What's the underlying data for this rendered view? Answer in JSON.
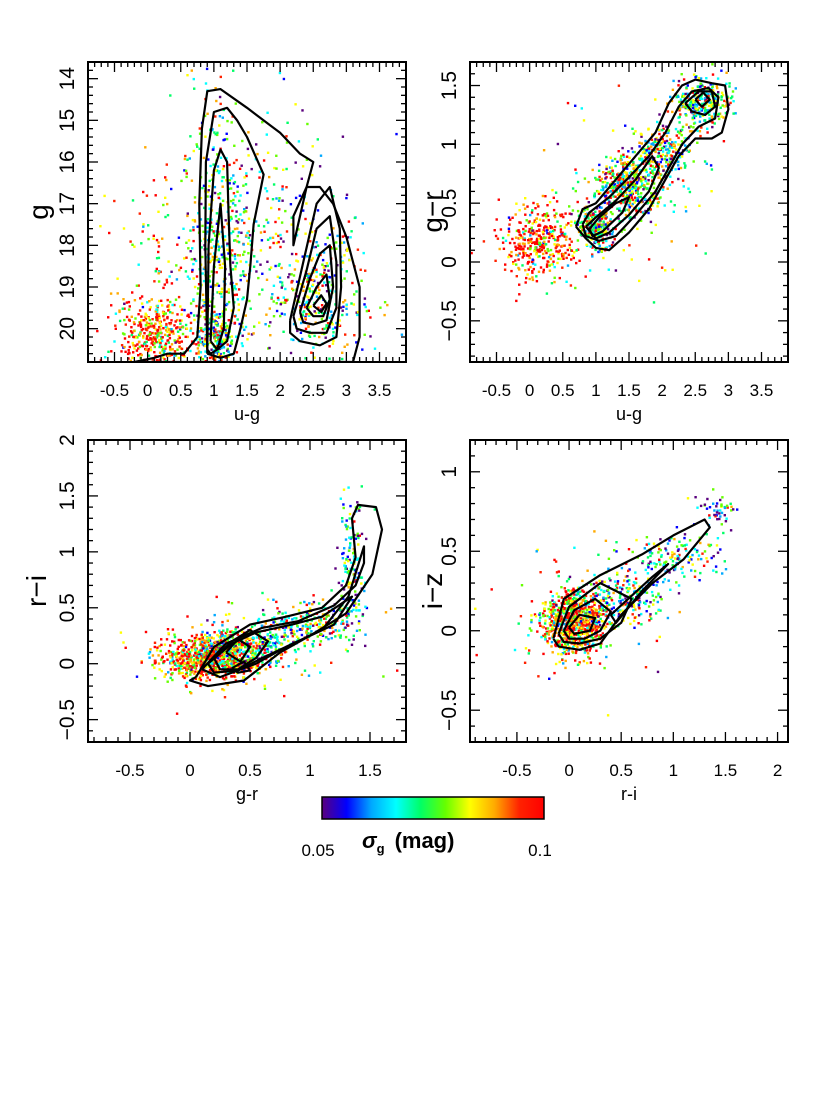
{
  "chart_data": [
    {
      "type": "scatter",
      "panel": "top-left",
      "xlabel": "u-g",
      "ylabel": "g",
      "xlim": [
        -0.9,
        3.9
      ],
      "ylim": [
        20.8,
        13.6
      ],
      "y_inverted": true,
      "xticks": [
        -0.5,
        0,
        0.5,
        1,
        1.5,
        2,
        2.5,
        3,
        3.5
      ],
      "xtick_labels": [
        "-0.5",
        "0",
        "0.5",
        "1",
        "1.5",
        "2",
        "2.5",
        "3",
        "3.5"
      ],
      "yticks": [
        14,
        15,
        16,
        17,
        18,
        19,
        20
      ],
      "ytick_labels": [
        "14",
        "15",
        "16",
        "17",
        "18",
        "19",
        "20"
      ],
      "clusters": [
        {
          "x": 0.1,
          "y": 20.1,
          "sx": 0.28,
          "sy": 0.45,
          "n": 380,
          "color_bias": 0.85
        },
        {
          "x": 0.2,
          "y": 18.7,
          "sx": 0.4,
          "sy": 1.2,
          "n": 90,
          "color_bias": 0.7
        },
        {
          "x": 1.05,
          "y": 18.2,
          "sx": 0.22,
          "sy": 1.8,
          "n": 420,
          "color_bias": 0.5
        },
        {
          "x": 1.0,
          "y": 20.2,
          "sx": 0.15,
          "sy": 0.35,
          "n": 160,
          "color_bias": 0.5
        },
        {
          "x": 1.7,
          "y": 17.8,
          "sx": 0.5,
          "sy": 1.6,
          "n": 220,
          "color_bias": 0.45
        },
        {
          "x": 2.6,
          "y": 19.2,
          "sx": 0.35,
          "sy": 0.9,
          "n": 320,
          "color_bias": 0.5
        },
        {
          "x": 1.6,
          "y": 18.5,
          "sx": 1.2,
          "sy": 1.8,
          "n": 110,
          "color_bias": 0.5
        }
      ],
      "contours": [
        {
          "x": [
            -0.2,
            0.1,
            0.3,
            0.55,
            0.75,
            0.8,
            0.78,
            0.82,
            0.9,
            1.1,
            1.5,
            2.0,
            2.3,
            2.5,
            2.4,
            2.2,
            2.2,
            2.4,
            2.6,
            2.8,
            3.0,
            3.2,
            3.2,
            3.1,
            2.8,
            2.0,
            1.3,
            0.6,
            0.1,
            -0.2,
            -0.2
          ],
          "y": [
            20.8,
            20.7,
            20.6,
            20.6,
            20.2,
            19.0,
            17.0,
            15.2,
            14.3,
            14.25,
            14.7,
            15.3,
            15.8,
            16.0,
            16.6,
            17.3,
            18.0,
            16.6,
            16.6,
            17.0,
            17.8,
            19.0,
            20.2,
            20.8,
            20.8,
            20.8,
            20.8,
            20.8,
            20.8,
            20.8,
            20.8
          ]
        },
        {
          "x": [
            0.9,
            0.87,
            0.88,
            1.0,
            1.2,
            1.35,
            1.5,
            1.75,
            1.6,
            1.55,
            1.5,
            1.4,
            1.3,
            1.1,
            0.9
          ],
          "y": [
            20.6,
            18.0,
            16.0,
            14.8,
            14.7,
            15.0,
            15.4,
            16.3,
            17.5,
            18.5,
            19.3,
            20.0,
            20.6,
            20.7,
            20.6
          ]
        },
        {
          "x": [
            0.9,
            0.92,
            1.0,
            1.1,
            1.2,
            1.22,
            1.25,
            1.3,
            1.2,
            1.05,
            0.95,
            0.9
          ],
          "y": [
            20.5,
            18.0,
            16.2,
            15.7,
            16.0,
            17.2,
            18.5,
            19.5,
            20.3,
            20.5,
            20.6,
            20.5
          ]
        },
        {
          "x": [
            0.95,
            1.0,
            1.1,
            1.17,
            1.15,
            1.05,
            0.95
          ],
          "y": [
            20.3,
            18.5,
            17.0,
            18.5,
            20.0,
            20.5,
            20.3
          ]
        },
        {
          "x": [
            2.15,
            2.35,
            2.55,
            2.75,
            2.9,
            2.92,
            2.85,
            2.6,
            2.3,
            2.15,
            2.15
          ],
          "y": [
            19.8,
            18.4,
            17.0,
            16.6,
            17.6,
            19.0,
            20.2,
            20.4,
            20.3,
            20.1,
            19.8
          ]
        },
        {
          "x": [
            2.2,
            2.4,
            2.55,
            2.75,
            2.85,
            2.85,
            2.7,
            2.45,
            2.25,
            2.2
          ],
          "y": [
            19.7,
            18.6,
            17.6,
            17.3,
            18.4,
            19.5,
            20.1,
            20.1,
            20.0,
            19.7
          ]
        },
        {
          "x": [
            2.3,
            2.45,
            2.6,
            2.75,
            2.8,
            2.7,
            2.5,
            2.35,
            2.3
          ],
          "y": [
            19.6,
            18.8,
            18.2,
            18.0,
            19.0,
            19.8,
            19.9,
            19.85,
            19.6
          ]
        },
        {
          "x": [
            2.4,
            2.55,
            2.7,
            2.75,
            2.65,
            2.5,
            2.4
          ],
          "y": [
            19.5,
            19.0,
            18.7,
            19.3,
            19.7,
            19.7,
            19.5
          ]
        },
        {
          "x": [
            2.5,
            2.62,
            2.7,
            2.62,
            2.5
          ],
          "y": [
            19.45,
            19.2,
            19.4,
            19.6,
            19.45
          ]
        }
      ]
    },
    {
      "type": "scatter",
      "panel": "top-right",
      "xlabel": "u-g",
      "ylabel": "g−r",
      "xlim": [
        -0.9,
        3.9
      ],
      "ylim": [
        -0.85,
        1.7
      ],
      "xticks": [
        -0.5,
        0,
        0.5,
        1,
        1.5,
        2,
        2.5,
        3,
        3.5
      ],
      "xtick_labels": [
        "-0.5",
        "0",
        "0.5",
        "1",
        "1.5",
        "2",
        "2.5",
        "3",
        "3.5"
      ],
      "yticks": [
        -0.5,
        0,
        0.5,
        1,
        1.5
      ],
      "ytick_labels": [
        "−0.5",
        "0",
        "0.5",
        "1",
        "1.5"
      ],
      "clusters": [
        {
          "x": 0.15,
          "y": 0.15,
          "sx": 0.3,
          "sy": 0.16,
          "n": 380,
          "color_bias": 0.85
        },
        {
          "x": 1.0,
          "y": 0.3,
          "sx": 0.15,
          "sy": 0.08,
          "n": 260,
          "color_bias": 0.5
        },
        {
          "x": 1.5,
          "y": 0.65,
          "sx": 0.25,
          "sy": 0.12,
          "n": 420,
          "color_bias": 0.5
        },
        {
          "x": 2.0,
          "y": 0.95,
          "sx": 0.22,
          "sy": 0.13,
          "n": 260,
          "color_bias": 0.5
        },
        {
          "x": 2.6,
          "y": 1.35,
          "sx": 0.22,
          "sy": 0.1,
          "n": 300,
          "color_bias": 0.5
        },
        {
          "x": 1.4,
          "y": 0.6,
          "sx": 0.9,
          "sy": 0.4,
          "n": 90,
          "color_bias": 0.55
        }
      ],
      "contours": [
        {
          "x": [
            0.7,
            0.8,
            1.0,
            1.3,
            1.6,
            1.9,
            2.1,
            2.3,
            2.5,
            2.75,
            2.95,
            3.0,
            2.9,
            2.75,
            2.5,
            2.25,
            2.05,
            1.8,
            1.5,
            1.2,
            1.0,
            0.85,
            0.7
          ],
          "y": [
            0.3,
            0.45,
            0.5,
            0.7,
            0.9,
            1.1,
            1.35,
            1.5,
            1.55,
            1.52,
            1.5,
            1.3,
            1.1,
            1.05,
            1.05,
            0.9,
            0.7,
            0.45,
            0.25,
            0.1,
            0.12,
            0.2,
            0.3
          ]
        },
        {
          "x": [
            0.8,
            0.9,
            1.2,
            1.5,
            1.8,
            2.05,
            2.25,
            2.45,
            2.7,
            2.85,
            2.8,
            2.55,
            2.3,
            2.1,
            1.9,
            1.6,
            1.3,
            1.05,
            0.85,
            0.8
          ],
          "y": [
            0.32,
            0.42,
            0.55,
            0.72,
            0.9,
            1.1,
            1.32,
            1.45,
            1.48,
            1.4,
            1.22,
            1.15,
            1.0,
            0.8,
            0.6,
            0.4,
            0.22,
            0.18,
            0.22,
            0.32
          ]
        },
        {
          "x": [
            0.85,
            1.0,
            1.3,
            1.6,
            1.85,
            1.95,
            1.8,
            1.5,
            1.2,
            1.0,
            0.85
          ],
          "y": [
            0.3,
            0.38,
            0.52,
            0.7,
            0.9,
            0.8,
            0.6,
            0.4,
            0.25,
            0.2,
            0.3
          ]
        },
        {
          "x": [
            0.9,
            1.05,
            1.3,
            1.5,
            1.4,
            1.1,
            0.95,
            0.9
          ],
          "y": [
            0.28,
            0.38,
            0.5,
            0.55,
            0.42,
            0.26,
            0.22,
            0.28
          ]
        },
        {
          "x": [
            2.35,
            2.55,
            2.75,
            2.8,
            2.65,
            2.45,
            2.35
          ],
          "y": [
            1.35,
            1.45,
            1.45,
            1.32,
            1.25,
            1.28,
            1.35
          ]
        },
        {
          "x": [
            2.5,
            2.62,
            2.72,
            2.6,
            2.5
          ],
          "y": [
            1.38,
            1.44,
            1.38,
            1.32,
            1.38
          ]
        }
      ]
    },
    {
      "type": "scatter",
      "panel": "bottom-left",
      "xlabel": "g-r",
      "ylabel": "r−i",
      "xlim": [
        -0.85,
        1.8
      ],
      "ylim": [
        -0.7,
        2.0
      ],
      "xticks": [
        -0.5,
        0,
        0.5,
        1,
        1.5
      ],
      "xtick_labels": [
        "-0.5",
        "0",
        "0.5",
        "1",
        "1.5"
      ],
      "yticks": [
        -0.5,
        0,
        0.5,
        1,
        1.5,
        2
      ],
      "ytick_labels": [
        "−0.5",
        "0",
        "0.5",
        "1",
        "1.5",
        "2"
      ],
      "clusters": [
        {
          "x": 0.15,
          "y": 0.05,
          "sx": 0.2,
          "sy": 0.1,
          "n": 750,
          "color_bias": 0.75
        },
        {
          "x": 0.45,
          "y": 0.15,
          "sx": 0.2,
          "sy": 0.09,
          "n": 320,
          "color_bias": 0.5
        },
        {
          "x": 0.95,
          "y": 0.35,
          "sx": 0.22,
          "sy": 0.1,
          "n": 240,
          "color_bias": 0.5
        },
        {
          "x": 1.35,
          "y": 0.8,
          "sx": 0.06,
          "sy": 0.3,
          "n": 160,
          "color_bias": 0.4
        },
        {
          "x": 0.5,
          "y": 0.2,
          "sx": 0.6,
          "sy": 0.3,
          "n": 70,
          "color_bias": 0.6
        }
      ],
      "contours": [
        {
          "x": [
            0.05,
            0.2,
            0.5,
            0.8,
            1.1,
            1.3,
            1.38,
            1.35,
            1.4,
            1.55,
            1.6,
            1.52,
            1.3,
            1.0,
            0.75,
            0.45,
            0.15,
            0.0,
            0.05
          ],
          "y": [
            -0.12,
            0.15,
            0.35,
            0.42,
            0.5,
            0.7,
            0.95,
            1.3,
            1.42,
            1.4,
            1.2,
            0.8,
            0.45,
            0.25,
            0.1,
            -0.15,
            -0.2,
            -0.15,
            -0.12
          ]
        },
        {
          "x": [
            0.1,
            0.3,
            0.6,
            0.9,
            1.2,
            1.38,
            1.45,
            1.45,
            1.32,
            1.1,
            0.8,
            0.55,
            0.25,
            0.1
          ],
          "y": [
            -0.05,
            0.18,
            0.32,
            0.38,
            0.52,
            0.7,
            0.9,
            1.05,
            0.6,
            0.3,
            0.15,
            0.0,
            -0.12,
            -0.05
          ]
        },
        {
          "x": [
            0.15,
            0.35,
            0.55,
            0.85,
            1.1,
            1.35,
            1.2,
            0.9,
            0.6,
            0.4,
            0.2,
            0.15
          ],
          "y": [
            0.0,
            0.18,
            0.28,
            0.35,
            0.42,
            0.6,
            0.35,
            0.2,
            0.05,
            -0.06,
            -0.08,
            0.0
          ]
        },
        {
          "x": [
            0.2,
            0.35,
            0.5,
            0.65,
            0.55,
            0.4,
            0.25,
            0.2
          ],
          "y": [
            0.05,
            0.2,
            0.3,
            0.2,
            0.05,
            -0.05,
            -0.05,
            0.05
          ]
        },
        {
          "x": [
            0.3,
            0.4,
            0.5,
            0.42,
            0.3
          ],
          "y": [
            0.1,
            0.22,
            0.15,
            0.02,
            0.1
          ]
        },
        {
          "x": [
            0.35,
            0.45,
            0.5,
            0.4,
            0.35
          ],
          "y": [
            -0.04,
            0.02,
            -0.06,
            -0.08,
            -0.04
          ]
        }
      ]
    },
    {
      "type": "scatter",
      "panel": "bottom-right",
      "xlabel": "r-i",
      "ylabel": "i−z",
      "xlim": [
        -0.95,
        2.1
      ],
      "ylim": [
        -0.7,
        1.2
      ],
      "xticks": [
        -0.5,
        0,
        0.5,
        1,
        1.5,
        2
      ],
      "xtick_labels": [
        "-0.5",
        "0",
        "0.5",
        "1",
        "1.5",
        "2"
      ],
      "yticks": [
        -0.5,
        0,
        0.5,
        1
      ],
      "ytick_labels": [
        "−0.5",
        "0",
        "0.5",
        "1"
      ],
      "clusters": [
        {
          "x": 0.05,
          "y": 0.05,
          "sx": 0.15,
          "sy": 0.1,
          "n": 800,
          "color_bias": 0.75
        },
        {
          "x": 0.5,
          "y": 0.2,
          "sx": 0.2,
          "sy": 0.08,
          "n": 220,
          "color_bias": 0.45
        },
        {
          "x": 1.0,
          "y": 0.45,
          "sx": 0.22,
          "sy": 0.08,
          "n": 150,
          "color_bias": 0.4
        },
        {
          "x": 1.45,
          "y": 0.75,
          "sx": 0.1,
          "sy": 0.06,
          "n": 50,
          "color_bias": 0.35
        },
        {
          "x": 0.1,
          "y": 0.1,
          "sx": 0.45,
          "sy": 0.25,
          "n": 80,
          "color_bias": 0.6
        }
      ],
      "contours": [
        {
          "x": [
            -0.15,
            -0.05,
            0.3,
            0.7,
            1.0,
            1.3,
            1.35,
            1.1,
            0.8,
            0.5,
            0.3,
            0.1,
            -0.1,
            -0.15
          ],
          "y": [
            -0.05,
            0.2,
            0.35,
            0.48,
            0.6,
            0.7,
            0.65,
            0.45,
            0.3,
            0.1,
            -0.08,
            -0.12,
            -0.1,
            -0.05
          ]
        },
        {
          "x": [
            -0.1,
            0.0,
            0.3,
            0.6,
            0.5,
            0.3,
            0.1,
            -0.05,
            -0.1
          ],
          "y": [
            -0.02,
            0.15,
            0.3,
            0.2,
            0.05,
            -0.05,
            -0.08,
            -0.07,
            -0.02
          ]
        },
        {
          "x": [
            -0.05,
            0.05,
            0.25,
            0.4,
            0.3,
            0.15,
            0.0,
            -0.05
          ],
          "y": [
            0.0,
            0.13,
            0.2,
            0.12,
            0.0,
            -0.05,
            -0.05,
            0.0
          ]
        },
        {
          "x": [
            0.0,
            0.1,
            0.25,
            0.2,
            0.05,
            0.0
          ],
          "y": [
            0.02,
            0.1,
            0.08,
            0.0,
            -0.02,
            0.02
          ]
        },
        {
          "x": [
            0.4,
            0.6,
            0.8,
            0.95,
            0.7,
            0.45,
            0.4
          ],
          "y": [
            0.1,
            0.22,
            0.34,
            0.42,
            0.25,
            0.05,
            0.1
          ]
        }
      ]
    }
  ],
  "colorbar": {
    "colormap": "rainbow",
    "min_label": "0.05",
    "max_label": "0.1",
    "title": "σ",
    "title_subscript": "g",
    "title_unit": "(mag)",
    "colors": [
      "#5a007e",
      "#0000ff",
      "#00a8ff",
      "#00ffff",
      "#00ff66",
      "#66ff00",
      "#ffff00",
      "#ffaa00",
      "#ff2200",
      "#ff0000"
    ]
  }
}
